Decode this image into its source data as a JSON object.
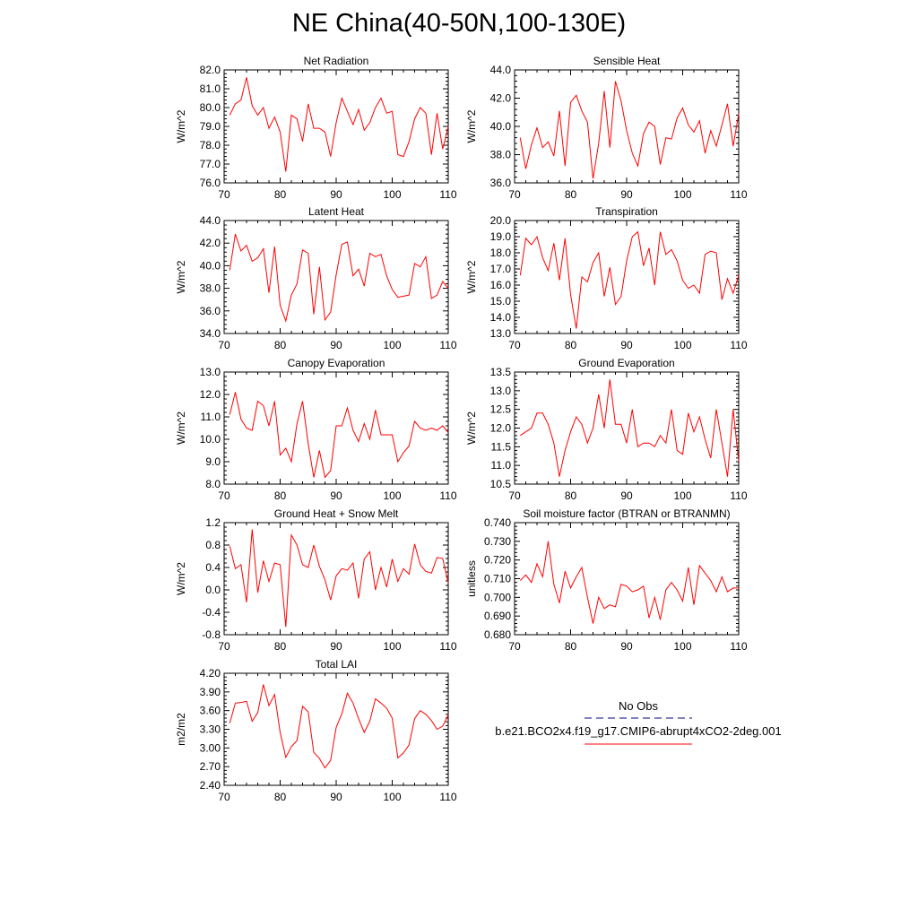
{
  "title": "NE China(40-50N,100-130E)",
  "legend": {
    "obs_label": "No Obs",
    "model_label": "b.e21.BCO2x4.f19_g17.CMIP6-abrupt4xCO2-2deg.001",
    "obs_color": "#000080",
    "model_color": "#ff0000"
  },
  "chart_data": [
    {
      "type": "line",
      "title": "Net Radiation",
      "ylabel": "W/m^2",
      "xlim": [
        70,
        110
      ],
      "ylim": [
        76.0,
        82.0
      ],
      "yticks": [
        "76.0",
        "77.0",
        "78.0",
        "79.0",
        "80.0",
        "81.0",
        "82.0"
      ],
      "xticks": [
        "70",
        "80",
        "90",
        "100",
        "110"
      ],
      "series": [
        {
          "color": "#ff0000",
          "x": [
            71,
            72,
            73,
            74,
            75,
            76,
            77,
            78,
            79,
            80,
            81,
            82,
            83,
            84,
            85,
            86,
            87,
            88,
            89,
            90,
            91,
            92,
            93,
            94,
            95,
            96,
            97,
            98,
            99,
            100,
            101,
            102,
            103,
            104,
            105,
            106,
            107,
            108,
            109,
            110
          ],
          "values": [
            79.6,
            80.2,
            80.4,
            81.6,
            80.1,
            79.6,
            80.0,
            78.9,
            79.5,
            78.7,
            76.6,
            79.6,
            79.4,
            78.2,
            80.2,
            78.9,
            78.9,
            78.7,
            77.4,
            79.2,
            80.5,
            79.8,
            79.1,
            79.9,
            78.8,
            79.2,
            80.0,
            80.5,
            79.7,
            79.8,
            77.5,
            77.4,
            78.2,
            79.4,
            80.0,
            79.7,
            77.5,
            79.7,
            77.8,
            79.0
          ]
        }
      ]
    },
    {
      "type": "line",
      "title": "Sensible Heat",
      "ylabel": "W/m^2",
      "xlim": [
        70,
        110
      ],
      "ylim": [
        36.0,
        44.0
      ],
      "yticks": [
        "36.0",
        "38.0",
        "40.0",
        "42.0",
        "44.0"
      ],
      "xticks": [
        "70",
        "80",
        "90",
        "100",
        "110"
      ],
      "series": [
        {
          "color": "#ff0000",
          "x": [
            71,
            72,
            73,
            74,
            75,
            76,
            77,
            78,
            79,
            80,
            81,
            82,
            83,
            84,
            85,
            86,
            87,
            88,
            89,
            90,
            91,
            92,
            93,
            94,
            95,
            96,
            97,
            98,
            99,
            100,
            101,
            102,
            103,
            104,
            105,
            106,
            107,
            108,
            109,
            110
          ],
          "values": [
            39.2,
            37.0,
            38.7,
            39.9,
            38.5,
            38.9,
            37.9,
            41.1,
            37.2,
            41.7,
            42.2,
            41.1,
            40.3,
            36.3,
            38.8,
            42.5,
            38.5,
            43.2,
            41.8,
            39.7,
            38.1,
            37.2,
            39.5,
            40.3,
            40.0,
            37.3,
            39.2,
            39.1,
            40.6,
            41.3,
            40.1,
            39.6,
            40.4,
            38.1,
            39.7,
            38.6,
            40.1,
            41.6,
            38.6,
            40.9
          ]
        }
      ]
    },
    {
      "type": "line",
      "title": "Latent Heat",
      "ylabel": "W/m^2",
      "xlim": [
        70,
        110
      ],
      "ylim": [
        34.0,
        44.0
      ],
      "yticks": [
        "34.0",
        "36.0",
        "38.0",
        "40.0",
        "42.0",
        "44.0"
      ],
      "xticks": [
        "70",
        "80",
        "90",
        "100",
        "110"
      ],
      "series": [
        {
          "color": "#ff0000",
          "x": [
            71,
            72,
            73,
            74,
            75,
            76,
            77,
            78,
            79,
            80,
            81,
            82,
            83,
            84,
            85,
            86,
            87,
            88,
            89,
            90,
            91,
            92,
            93,
            94,
            95,
            96,
            97,
            98,
            99,
            100,
            101,
            102,
            103,
            104,
            105,
            106,
            107,
            108,
            109,
            110
          ],
          "values": [
            39.6,
            42.8,
            41.3,
            41.8,
            40.4,
            40.7,
            41.5,
            37.6,
            41.7,
            36.5,
            35.1,
            37.4,
            38.4,
            41.4,
            41.1,
            35.7,
            39.9,
            35.2,
            35.9,
            39.2,
            41.9,
            42.1,
            39.1,
            39.7,
            38.2,
            41.1,
            40.8,
            41.0,
            39.1,
            37.9,
            37.2,
            37.3,
            37.4,
            40.2,
            39.9,
            40.8,
            37.1,
            37.4,
            38.6,
            38.0
          ]
        }
      ]
    },
    {
      "type": "line",
      "title": "Transpiration",
      "ylabel": "W/m^2",
      "xlim": [
        70,
        110
      ],
      "ylim": [
        13.0,
        20.0
      ],
      "yticks": [
        "13.0",
        "14.0",
        "15.0",
        "16.0",
        "17.0",
        "18.0",
        "19.0",
        "20.0"
      ],
      "xticks": [
        "70",
        "80",
        "90",
        "100",
        "110"
      ],
      "series": [
        {
          "color": "#ff0000",
          "x": [
            71,
            72,
            73,
            74,
            75,
            76,
            77,
            78,
            79,
            80,
            81,
            82,
            83,
            84,
            85,
            86,
            87,
            88,
            89,
            90,
            91,
            92,
            93,
            94,
            95,
            96,
            97,
            98,
            99,
            100,
            101,
            102,
            103,
            104,
            105,
            106,
            107,
            108,
            109,
            110
          ],
          "values": [
            16.6,
            18.9,
            18.5,
            19.0,
            17.7,
            16.9,
            18.6,
            16.3,
            18.9,
            15.4,
            13.3,
            16.5,
            16.2,
            17.4,
            18.0,
            15.3,
            17.1,
            14.8,
            15.3,
            17.5,
            19.0,
            19.3,
            17.2,
            18.3,
            16.0,
            19.3,
            17.9,
            18.2,
            17.5,
            16.3,
            15.8,
            16.0,
            15.5,
            17.9,
            18.1,
            18.0,
            15.1,
            16.4,
            15.5,
            16.6
          ]
        }
      ]
    },
    {
      "type": "line",
      "title": "Canopy Evaporation",
      "ylabel": "W/m^2",
      "xlim": [
        70,
        110
      ],
      "ylim": [
        8.0,
        13.0
      ],
      "yticks": [
        "8.0",
        "9.0",
        "10.0",
        "11.0",
        "12.0",
        "13.0"
      ],
      "xticks": [
        "70",
        "80",
        "90",
        "100",
        "110"
      ],
      "series": [
        {
          "color": "#ff0000",
          "x": [
            71,
            72,
            73,
            74,
            75,
            76,
            77,
            78,
            79,
            80,
            81,
            82,
            83,
            84,
            85,
            86,
            87,
            88,
            89,
            90,
            91,
            92,
            93,
            94,
            95,
            96,
            97,
            98,
            99,
            100,
            101,
            102,
            103,
            104,
            105,
            106,
            107,
            108,
            109,
            110
          ],
          "values": [
            11.1,
            12.1,
            10.9,
            10.5,
            10.4,
            11.7,
            11.5,
            10.6,
            11.7,
            9.3,
            9.6,
            9.0,
            10.7,
            11.7,
            9.8,
            8.3,
            9.5,
            8.3,
            8.6,
            10.6,
            10.6,
            11.4,
            10.4,
            9.9,
            10.7,
            10.0,
            11.3,
            10.2,
            10.2,
            10.2,
            9.0,
            9.4,
            9.7,
            10.8,
            10.5,
            10.4,
            10.5,
            10.4,
            10.6,
            10.3
          ]
        }
      ]
    },
    {
      "type": "line",
      "title": "Ground Evaporation",
      "ylabel": "W/m^2",
      "xlim": [
        70,
        110
      ],
      "ylim": [
        10.5,
        13.5
      ],
      "yticks": [
        "10.5",
        "11.0",
        "11.5",
        "12.0",
        "12.5",
        "13.0",
        "13.5"
      ],
      "xticks": [
        "70",
        "80",
        "90",
        "100",
        "110"
      ],
      "series": [
        {
          "color": "#ff0000",
          "x": [
            71,
            72,
            73,
            74,
            75,
            76,
            77,
            78,
            79,
            80,
            81,
            82,
            83,
            84,
            85,
            86,
            87,
            88,
            89,
            90,
            91,
            92,
            93,
            94,
            95,
            96,
            97,
            98,
            99,
            100,
            101,
            102,
            103,
            104,
            105,
            106,
            107,
            108,
            109,
            110
          ],
          "values": [
            11.8,
            11.9,
            12.0,
            12.4,
            12.4,
            12.1,
            11.6,
            10.7,
            11.4,
            11.9,
            12.3,
            12.1,
            11.6,
            12.0,
            12.9,
            12.0,
            13.3,
            12.1,
            12.1,
            11.6,
            12.5,
            11.5,
            11.6,
            11.6,
            11.5,
            11.8,
            11.6,
            12.5,
            11.4,
            11.3,
            12.4,
            11.9,
            12.3,
            11.7,
            11.2,
            12.5,
            11.6,
            10.7,
            12.5,
            11.1
          ]
        }
      ]
    },
    {
      "type": "line",
      "title": "Ground Heat + Snow Melt",
      "ylabel": "W/m^2",
      "xlim": [
        70,
        110
      ],
      "ylim": [
        -0.8,
        1.2
      ],
      "yticks": [
        "-0.8",
        "-0.4",
        "0.0",
        "0.4",
        "0.8",
        "1.2"
      ],
      "xticks": [
        "70",
        "80",
        "90",
        "100",
        "110"
      ],
      "series": [
        {
          "color": "#ff0000",
          "x": [
            71,
            72,
            73,
            74,
            75,
            76,
            77,
            78,
            79,
            80,
            81,
            82,
            83,
            84,
            85,
            86,
            87,
            88,
            89,
            90,
            91,
            92,
            93,
            94,
            95,
            96,
            97,
            98,
            99,
            100,
            101,
            102,
            103,
            104,
            105,
            106,
            107,
            108,
            109,
            110
          ],
          "values": [
            0.78,
            0.38,
            0.45,
            -0.22,
            1.08,
            -0.05,
            0.52,
            0.15,
            0.48,
            0.45,
            -0.66,
            0.98,
            0.8,
            0.45,
            0.4,
            0.8,
            0.42,
            0.18,
            -0.18,
            0.25,
            0.38,
            0.35,
            0.48,
            -0.15,
            0.55,
            0.68,
            0.0,
            0.4,
            0.05,
            0.55,
            0.15,
            0.38,
            0.28,
            0.82,
            0.45,
            0.33,
            0.3,
            0.58,
            0.56,
            0.12
          ]
        }
      ]
    },
    {
      "type": "line",
      "title": "Soil moisture factor (BTRAN or BTRANMN)",
      "ylabel": "unitless",
      "xlim": [
        70,
        110
      ],
      "ylim": [
        0.68,
        0.74
      ],
      "yticks": [
        "0.680",
        "0.690",
        "0.700",
        "0.710",
        "0.720",
        "0.730",
        "0.740"
      ],
      "xticks": [
        "70",
        "80",
        "90",
        "100",
        "110"
      ],
      "series": [
        {
          "color": "#ff0000",
          "x": [
            71,
            72,
            73,
            74,
            75,
            76,
            77,
            78,
            79,
            80,
            81,
            82,
            83,
            84,
            85,
            86,
            87,
            88,
            89,
            90,
            91,
            92,
            93,
            94,
            95,
            96,
            97,
            98,
            99,
            100,
            101,
            102,
            103,
            104,
            105,
            106,
            107,
            108,
            109,
            110
          ],
          "values": [
            0.709,
            0.712,
            0.708,
            0.718,
            0.711,
            0.73,
            0.707,
            0.697,
            0.714,
            0.705,
            0.711,
            0.716,
            0.7,
            0.686,
            0.7,
            0.694,
            0.696,
            0.695,
            0.707,
            0.706,
            0.703,
            0.704,
            0.706,
            0.689,
            0.7,
            0.688,
            0.704,
            0.708,
            0.704,
            0.698,
            0.716,
            0.696,
            0.717,
            0.713,
            0.709,
            0.703,
            0.711,
            0.703,
            0.705,
            0.705
          ]
        }
      ]
    },
    {
      "type": "line",
      "title": "Total LAI",
      "ylabel": "m2/m2",
      "xlim": [
        70,
        110
      ],
      "ylim": [
        2.4,
        4.2
      ],
      "yticks": [
        "2.40",
        "2.70",
        "3.00",
        "3.30",
        "3.60",
        "3.90",
        "4.20"
      ],
      "xticks": [
        "70",
        "80",
        "90",
        "100",
        "110"
      ],
      "series": [
        {
          "color": "#ff0000",
          "x": [
            71,
            72,
            73,
            74,
            75,
            76,
            77,
            78,
            79,
            80,
            81,
            82,
            83,
            84,
            85,
            86,
            87,
            88,
            89,
            90,
            91,
            92,
            93,
            94,
            95,
            96,
            97,
            98,
            99,
            100,
            101,
            102,
            103,
            104,
            105,
            106,
            107,
            108,
            109,
            110
          ],
          "values": [
            3.4,
            3.72,
            3.73,
            3.75,
            3.43,
            3.57,
            4.02,
            3.68,
            3.86,
            3.25,
            2.85,
            3.02,
            3.12,
            3.67,
            3.58,
            2.93,
            2.83,
            2.68,
            2.8,
            3.33,
            3.55,
            3.88,
            3.72,
            3.47,
            3.25,
            3.43,
            3.79,
            3.72,
            3.64,
            3.48,
            2.84,
            2.92,
            3.05,
            3.47,
            3.6,
            3.54,
            3.44,
            3.3,
            3.35,
            3.53
          ]
        }
      ]
    }
  ]
}
